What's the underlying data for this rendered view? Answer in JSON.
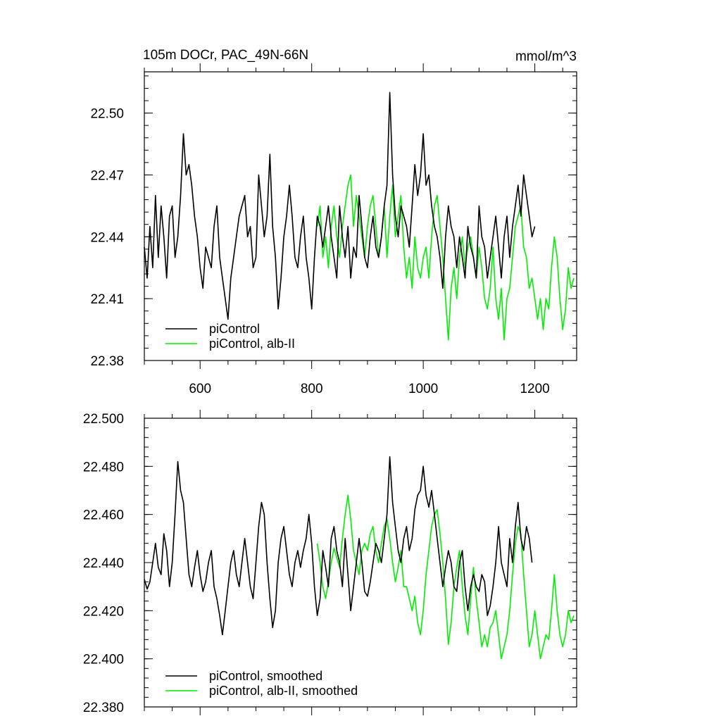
{
  "colors": {
    "black": "#000000",
    "green": "#00ee00",
    "axis": "#000000"
  },
  "chart_data": [
    {
      "type": "line",
      "title": "105m DOCr, PAC_49N-66N",
      "units": "mmol/m^3",
      "xlim": [
        500,
        1275
      ],
      "ylim": [
        22.38,
        22.52
      ],
      "yticks": [
        22.38,
        22.41,
        22.44,
        22.47,
        22.5
      ],
      "ytick_labels": [
        "22.38",
        "22.41",
        "22.44",
        "22.47",
        "22.50"
      ],
      "xticks": [
        600,
        800,
        1000,
        1200
      ],
      "xtick_labels": [
        "600",
        "800",
        "1000",
        "1200"
      ],
      "show_xtick_labels": true,
      "legend_position": "bottom-left",
      "series": [
        {
          "name": "piControl",
          "color": "#000000",
          "x": [
            500,
            505,
            510,
            515,
            520,
            525,
            530,
            535,
            540,
            545,
            550,
            555,
            560,
            565,
            570,
            575,
            580,
            585,
            590,
            595,
            600,
            605,
            610,
            615,
            620,
            625,
            630,
            635,
            640,
            645,
            650,
            655,
            660,
            665,
            670,
            675,
            680,
            685,
            690,
            695,
            700,
            705,
            710,
            715,
            720,
            725,
            730,
            735,
            740,
            745,
            750,
            755,
            760,
            765,
            770,
            775,
            780,
            785,
            790,
            795,
            800,
            805,
            810,
            815,
            820,
            825,
            830,
            835,
            840,
            845,
            850,
            855,
            860,
            865,
            870,
            875,
            880,
            885,
            890,
            895,
            900,
            905,
            910,
            915,
            920,
            925,
            930,
            935,
            940,
            945,
            950,
            955,
            960,
            965,
            970,
            975,
            980,
            985,
            990,
            995,
            1000,
            1005,
            1010,
            1015,
            1020,
            1025,
            1030,
            1035,
            1040,
            1045,
            1050,
            1055,
            1060,
            1065,
            1070,
            1075,
            1080,
            1085,
            1090,
            1095,
            1100,
            1105,
            1110,
            1115,
            1120,
            1125,
            1130,
            1135,
            1140,
            1145,
            1150,
            1155,
            1160,
            1165,
            1170,
            1175,
            1180,
            1185,
            1190,
            1195,
            1200
          ],
          "y": [
            22.435,
            22.42,
            22.445,
            22.425,
            22.46,
            22.43,
            22.455,
            22.44,
            22.42,
            22.45,
            22.455,
            22.43,
            22.44,
            22.46,
            22.49,
            22.47,
            22.475,
            22.465,
            22.45,
            22.44,
            22.425,
            22.415,
            22.435,
            22.43,
            22.425,
            22.445,
            22.455,
            22.43,
            22.42,
            22.41,
            22.4,
            22.42,
            22.43,
            22.44,
            22.45,
            22.455,
            22.46,
            22.44,
            22.445,
            22.425,
            22.43,
            22.47,
            22.455,
            22.44,
            22.45,
            22.48,
            22.445,
            22.43,
            22.405,
            22.42,
            22.44,
            22.45,
            22.465,
            22.45,
            22.43,
            22.425,
            22.44,
            22.45,
            22.43,
            22.42,
            22.405,
            22.43,
            22.45,
            22.445,
            22.435,
            22.445,
            22.455,
            22.44,
            22.43,
            22.42,
            22.455,
            22.44,
            22.43,
            22.445,
            22.42,
            22.435,
            22.43,
            22.46,
            22.445,
            22.43,
            22.425,
            22.44,
            22.45,
            22.435,
            22.43,
            22.44,
            22.455,
            22.465,
            22.51,
            22.47,
            22.45,
            22.44,
            22.455,
            22.45,
            22.445,
            22.435,
            22.455,
            22.475,
            22.46,
            22.47,
            22.49,
            22.465,
            22.47,
            22.455,
            22.445,
            22.44,
            22.43,
            22.415,
            22.44,
            22.455,
            22.445,
            22.44,
            22.425,
            22.44,
            22.43,
            22.42,
            22.445,
            22.435,
            22.43,
            22.42,
            22.455,
            22.44,
            22.435,
            22.42,
            22.43,
            22.44,
            22.45,
            22.435,
            22.42,
            22.44,
            22.45,
            22.43,
            22.445,
            22.455,
            22.465,
            22.45,
            22.47,
            22.46,
            22.45,
            22.44,
            22.445
          ]
        },
        {
          "name": "piControl, alb-II",
          "color": "#00ee00",
          "x": [
            810,
            815,
            820,
            825,
            830,
            835,
            840,
            845,
            850,
            855,
            860,
            865,
            870,
            875,
            880,
            885,
            890,
            895,
            900,
            905,
            910,
            915,
            920,
            925,
            930,
            935,
            940,
            945,
            950,
            955,
            960,
            965,
            970,
            975,
            980,
            985,
            990,
            995,
            1000,
            1005,
            1010,
            1015,
            1020,
            1025,
            1030,
            1035,
            1040,
            1045,
            1050,
            1055,
            1060,
            1065,
            1070,
            1075,
            1080,
            1085,
            1090,
            1095,
            1100,
            1105,
            1110,
            1115,
            1120,
            1125,
            1130,
            1135,
            1140,
            1145,
            1150,
            1155,
            1160,
            1165,
            1170,
            1175,
            1180,
            1185,
            1190,
            1195,
            1200,
            1205,
            1210,
            1215,
            1220,
            1225,
            1230,
            1235,
            1240,
            1245,
            1250,
            1255,
            1260,
            1265,
            1270
          ],
          "y": [
            22.445,
            22.455,
            22.43,
            22.44,
            22.425,
            22.445,
            22.455,
            22.44,
            22.43,
            22.445,
            22.455,
            22.465,
            22.47,
            22.445,
            22.46,
            22.45,
            22.44,
            22.43,
            22.445,
            22.455,
            22.46,
            22.445,
            22.43,
            22.44,
            22.455,
            22.43,
            22.45,
            22.465,
            22.44,
            22.45,
            22.46,
            22.435,
            22.42,
            22.43,
            22.415,
            22.44,
            22.425,
            22.42,
            22.43,
            22.435,
            22.42,
            22.44,
            22.455,
            22.46,
            22.445,
            22.43,
            22.41,
            22.39,
            22.415,
            22.425,
            22.41,
            22.43,
            22.44,
            22.425,
            22.435,
            22.44,
            22.43,
            22.42,
            22.435,
            22.425,
            22.41,
            22.405,
            22.415,
            22.435,
            22.41,
            22.4,
            22.415,
            22.39,
            22.41,
            22.415,
            22.43,
            22.445,
            22.45,
            22.455,
            22.435,
            22.43,
            22.415,
            22.42,
            22.41,
            22.4,
            22.41,
            22.395,
            22.41,
            22.405,
            22.425,
            22.44,
            22.43,
            22.41,
            22.395,
            22.405,
            22.425,
            22.415,
            22.42
          ]
        }
      ]
    },
    {
      "type": "line",
      "title": "",
      "units": "",
      "xlim": [
        500,
        1275
      ],
      "ylim": [
        22.38,
        22.5
      ],
      "yticks": [
        22.38,
        22.4,
        22.42,
        22.44,
        22.46,
        22.48,
        22.5
      ],
      "ytick_labels": [
        "22.380",
        "22.400",
        "22.420",
        "22.440",
        "22.460",
        "22.480",
        "22.500"
      ],
      "xticks": [
        600,
        800,
        1000,
        1200
      ],
      "xtick_labels": [
        "600",
        "800",
        "1000",
        "1200"
      ],
      "show_xtick_labels": false,
      "legend_position": "bottom-left",
      "series": [
        {
          "name": "piControl, smoothed",
          "color": "#000000",
          "x": [
            500,
            505,
            510,
            515,
            520,
            525,
            530,
            535,
            540,
            545,
            550,
            555,
            560,
            565,
            570,
            575,
            580,
            585,
            590,
            595,
            600,
            605,
            610,
            615,
            620,
            625,
            630,
            635,
            640,
            645,
            650,
            655,
            660,
            665,
            670,
            675,
            680,
            685,
            690,
            695,
            700,
            705,
            710,
            715,
            720,
            725,
            730,
            735,
            740,
            745,
            750,
            755,
            760,
            765,
            770,
            775,
            780,
            785,
            790,
            795,
            800,
            805,
            810,
            815,
            820,
            825,
            830,
            835,
            840,
            845,
            850,
            855,
            860,
            865,
            870,
            875,
            880,
            885,
            890,
            895,
            900,
            905,
            910,
            915,
            920,
            925,
            930,
            935,
            940,
            945,
            950,
            955,
            960,
            965,
            970,
            975,
            980,
            985,
            990,
            995,
            1000,
            1005,
            1010,
            1015,
            1020,
            1025,
            1030,
            1035,
            1040,
            1045,
            1050,
            1055,
            1060,
            1065,
            1070,
            1075,
            1080,
            1085,
            1090,
            1095,
            1100,
            1105,
            1110,
            1115,
            1120,
            1125,
            1130,
            1135,
            1140,
            1145,
            1150,
            1155,
            1160,
            1165,
            1170,
            1175,
            1180,
            1185,
            1190,
            1195
          ],
          "y": [
            22.433,
            22.429,
            22.432,
            22.44,
            22.448,
            22.438,
            22.435,
            22.452,
            22.445,
            22.43,
            22.44,
            22.46,
            22.482,
            22.47,
            22.465,
            22.45,
            22.435,
            22.43,
            22.438,
            22.445,
            22.435,
            22.428,
            22.432,
            22.44,
            22.445,
            22.43,
            22.425,
            22.418,
            22.41,
            22.42,
            22.43,
            22.44,
            22.445,
            22.435,
            22.43,
            22.44,
            22.45,
            22.44,
            22.43,
            22.425,
            22.44,
            22.455,
            22.465,
            22.46,
            22.44,
            22.425,
            22.413,
            22.42,
            22.44,
            22.45,
            22.455,
            22.445,
            22.435,
            22.43,
            22.44,
            22.445,
            22.438,
            22.445,
            22.45,
            22.46,
            22.448,
            22.43,
            22.418,
            22.425,
            22.445,
            22.438,
            22.43,
            22.45,
            22.455,
            22.445,
            22.44,
            22.43,
            22.45,
            22.435,
            22.42,
            22.43,
            22.44,
            22.45,
            22.44,
            22.428,
            22.426,
            22.432,
            22.44,
            22.448,
            22.445,
            22.44,
            22.45,
            22.46,
            22.484,
            22.465,
            22.455,
            22.445,
            22.44,
            22.45,
            22.455,
            22.445,
            22.45,
            22.462,
            22.468,
            22.47,
            22.48,
            22.468,
            22.463,
            22.47,
            22.46,
            22.45,
            22.44,
            22.43,
            22.438,
            22.445,
            22.44,
            22.43,
            22.428,
            22.44,
            22.445,
            22.43,
            22.42,
            22.43,
            22.435,
            22.43,
            22.428,
            22.435,
            22.432,
            22.418,
            22.422,
            22.43,
            22.44,
            22.455,
            22.44,
            22.435,
            22.43,
            22.45,
            22.44,
            22.455,
            22.465,
            22.45,
            22.445,
            22.455,
            22.45,
            22.44
          ]
        },
        {
          "name": "piControl, alb-II, smoothed",
          "color": "#00ee00",
          "x": [
            810,
            815,
            820,
            825,
            830,
            835,
            840,
            845,
            850,
            855,
            860,
            865,
            870,
            875,
            880,
            885,
            890,
            895,
            900,
            905,
            910,
            915,
            920,
            925,
            930,
            935,
            940,
            945,
            950,
            955,
            960,
            965,
            970,
            975,
            980,
            985,
            990,
            995,
            1000,
            1005,
            1010,
            1015,
            1020,
            1025,
            1030,
            1035,
            1040,
            1045,
            1050,
            1055,
            1060,
            1065,
            1070,
            1075,
            1080,
            1085,
            1090,
            1095,
            1100,
            1105,
            1110,
            1115,
            1120,
            1125,
            1130,
            1135,
            1140,
            1145,
            1150,
            1155,
            1160,
            1165,
            1170,
            1175,
            1180,
            1185,
            1190,
            1195,
            1200,
            1205,
            1210,
            1215,
            1220,
            1225,
            1230,
            1235,
            1240,
            1245,
            1250,
            1255,
            1260,
            1265,
            1270
          ],
          "y": [
            22.448,
            22.44,
            22.43,
            22.425,
            22.432,
            22.44,
            22.446,
            22.442,
            22.438,
            22.45,
            22.46,
            22.468,
            22.458,
            22.445,
            22.44,
            22.435,
            22.445,
            22.448,
            22.445,
            22.452,
            22.455,
            22.445,
            22.44,
            22.448,
            22.455,
            22.458,
            22.45,
            22.44,
            22.432,
            22.438,
            22.445,
            22.43,
            22.43,
            22.425,
            22.42,
            22.426,
            22.415,
            22.41,
            22.42,
            22.435,
            22.445,
            22.455,
            22.46,
            22.462,
            22.452,
            22.44,
            22.425,
            22.406,
            22.415,
            22.43,
            22.438,
            22.445,
            22.43,
            22.418,
            22.41,
            22.425,
            22.438,
            22.425,
            22.415,
            22.405,
            22.41,
            22.405,
            22.413,
            22.415,
            22.42,
            22.41,
            22.4,
            22.405,
            22.41,
            22.42,
            22.435,
            22.448,
            22.455,
            22.452,
            22.435,
            22.42,
            22.405,
            22.41,
            22.42,
            22.41,
            22.4,
            22.405,
            22.41,
            22.408,
            22.42,
            22.435,
            22.42,
            22.41,
            22.405,
            22.41,
            22.42,
            22.415,
            22.418
          ]
        }
      ]
    }
  ]
}
